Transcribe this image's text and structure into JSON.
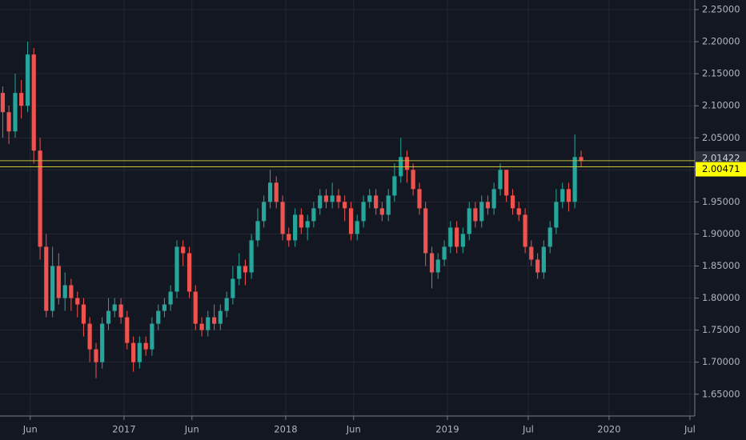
{
  "chart_data": {
    "type": "candlestick",
    "background": "#131722",
    "grid": true,
    "grid_color": "#242733",
    "xlim": [
      2016.233,
      2020.53
    ],
    "ylim": [
      1.616,
      2.265
    ],
    "xticks": [
      {
        "value": 2016.42,
        "label": "Jun"
      },
      {
        "value": 2017,
        "label": "2017"
      },
      {
        "value": 2017.42,
        "label": "Jun"
      },
      {
        "value": 2018,
        "label": "2018"
      },
      {
        "value": 2018.42,
        "label": "Jun"
      },
      {
        "value": 2019,
        "label": "2019"
      },
      {
        "value": 2019.5,
        "label": "Jul"
      },
      {
        "value": 2020,
        "label": "2020"
      },
      {
        "value": 2020.5,
        "label": "Jul"
      }
    ],
    "yticks": [
      {
        "value": 1.65,
        "label": "1.65000"
      },
      {
        "value": 1.7,
        "label": "1.70000"
      },
      {
        "value": 1.75,
        "label": "1.75000"
      },
      {
        "value": 1.8,
        "label": "1.80000"
      },
      {
        "value": 1.85,
        "label": "1.85000"
      },
      {
        "value": 1.9,
        "label": "1.90000"
      },
      {
        "value": 1.95,
        "label": "1.95000"
      },
      {
        "value": 2.0,
        "label": "2.00000"
      },
      {
        "value": 2.05,
        "label": "2.05000"
      },
      {
        "value": 2.1,
        "label": "2.10000"
      },
      {
        "value": 2.15,
        "label": "2.15000"
      },
      {
        "value": 2.2,
        "label": "2.20000"
      },
      {
        "value": 2.25,
        "label": "2.25000"
      }
    ],
    "up_color": "#26a69a",
    "down_color": "#ef5350",
    "x": [
      2016.25,
      2016.288,
      2016.327,
      2016.365,
      2016.404,
      2016.442,
      2016.481,
      2016.519,
      2016.558,
      2016.596,
      2016.635,
      2016.673,
      2016.712,
      2016.75,
      2016.788,
      2016.827,
      2016.865,
      2016.904,
      2016.942,
      2016.981,
      2017.019,
      2017.058,
      2017.096,
      2017.135,
      2017.173,
      2017.212,
      2017.25,
      2017.288,
      2017.327,
      2017.365,
      2017.404,
      2017.442,
      2017.481,
      2017.519,
      2017.558,
      2017.596,
      2017.635,
      2017.673,
      2017.712,
      2017.75,
      2017.788,
      2017.827,
      2017.865,
      2017.904,
      2017.942,
      2017.981,
      2018.019,
      2018.058,
      2018.096,
      2018.135,
      2018.173,
      2018.212,
      2018.25,
      2018.288,
      2018.327,
      2018.365,
      2018.404,
      2018.442,
      2018.481,
      2018.519,
      2018.558,
      2018.596,
      2018.635,
      2018.673,
      2018.712,
      2018.75,
      2018.788,
      2018.827,
      2018.865,
      2018.904,
      2018.942,
      2018.981,
      2019.019,
      2019.058,
      2019.096,
      2019.135,
      2019.173,
      2019.212,
      2019.25,
      2019.288,
      2019.327,
      2019.365,
      2019.404,
      2019.442,
      2019.481,
      2019.519,
      2019.558,
      2019.596,
      2019.635,
      2019.673,
      2019.712,
      2019.75,
      2019.788,
      2019.827
    ],
    "open": [
      2.12,
      2.09,
      2.06,
      2.12,
      2.1,
      2.18,
      2.03,
      1.88,
      1.78,
      1.85,
      1.8,
      1.82,
      1.8,
      1.79,
      1.76,
      1.72,
      1.7,
      1.76,
      1.78,
      1.79,
      1.77,
      1.73,
      1.7,
      1.73,
      1.72,
      1.76,
      1.78,
      1.79,
      1.81,
      1.88,
      1.87,
      1.81,
      1.76,
      1.75,
      1.77,
      1.76,
      1.78,
      1.8,
      1.83,
      1.85,
      1.84,
      1.89,
      1.92,
      1.95,
      1.98,
      1.95,
      1.9,
      1.89,
      1.93,
      1.91,
      1.92,
      1.94,
      1.96,
      1.95,
      1.96,
      1.95,
      1.94,
      1.9,
      1.92,
      1.95,
      1.96,
      1.94,
      1.93,
      1.96,
      1.99,
      2.02,
      2.0,
      1.97,
      1.94,
      1.87,
      1.84,
      1.86,
      1.88,
      1.91,
      1.88,
      1.9,
      1.94,
      1.92,
      1.95,
      1.94,
      1.97,
      2.0,
      1.96,
      1.94,
      1.93,
      1.88,
      1.86,
      1.84,
      1.88,
      1.91,
      1.95,
      1.97,
      1.95,
      2.02
    ],
    "high": [
      2.13,
      2.1,
      2.15,
      2.14,
      2.2,
      2.19,
      2.05,
      1.9,
      1.88,
      1.87,
      1.84,
      1.83,
      1.81,
      1.8,
      1.77,
      1.73,
      1.77,
      1.8,
      1.8,
      1.8,
      1.78,
      1.74,
      1.74,
      1.74,
      1.77,
      1.79,
      1.8,
      1.82,
      1.89,
      1.89,
      1.88,
      1.82,
      1.77,
      1.78,
      1.79,
      1.79,
      1.81,
      1.85,
      1.87,
      1.86,
      1.9,
      1.94,
      1.96,
      2.0,
      1.99,
      1.96,
      1.91,
      1.94,
      1.94,
      1.93,
      1.95,
      1.97,
      1.97,
      1.98,
      1.97,
      1.96,
      1.95,
      1.93,
      1.96,
      1.97,
      1.97,
      1.95,
      1.97,
      2.01,
      2.05,
      2.03,
      2.01,
      1.98,
      1.95,
      1.88,
      1.87,
      1.89,
      1.92,
      1.92,
      1.91,
      1.95,
      1.95,
      1.96,
      1.96,
      1.98,
      2.01,
      2.0,
      1.97,
      1.95,
      1.94,
      1.89,
      1.87,
      1.89,
      1.92,
      1.97,
      1.98,
      1.98,
      2.055,
      2.03
    ],
    "low": [
      2.05,
      2.04,
      2.05,
      2.08,
      2.09,
      2.01,
      1.86,
      1.77,
      1.77,
      1.79,
      1.78,
      1.78,
      1.77,
      1.74,
      1.7,
      1.675,
      1.69,
      1.75,
      1.77,
      1.76,
      1.72,
      1.685,
      1.69,
      1.71,
      1.71,
      1.75,
      1.77,
      1.78,
      1.8,
      1.85,
      1.8,
      1.75,
      1.74,
      1.74,
      1.75,
      1.75,
      1.77,
      1.79,
      1.82,
      1.82,
      1.83,
      1.88,
      1.91,
      1.94,
      1.94,
      1.89,
      1.88,
      1.88,
      1.9,
      1.89,
      1.91,
      1.93,
      1.94,
      1.94,
      1.94,
      1.92,
      1.89,
      1.89,
      1.91,
      1.94,
      1.93,
      1.92,
      1.92,
      1.95,
      1.98,
      1.98,
      1.96,
      1.93,
      1.85,
      1.815,
      1.83,
      1.85,
      1.87,
      1.87,
      1.87,
      1.89,
      1.91,
      1.91,
      1.93,
      1.93,
      1.96,
      1.95,
      1.93,
      1.92,
      1.87,
      1.85,
      1.83,
      1.83,
      1.87,
      1.9,
      1.94,
      1.935,
      1.94,
      2.005
    ],
    "close": [
      2.09,
      2.06,
      2.12,
      2.1,
      2.18,
      2.03,
      1.88,
      1.78,
      1.85,
      1.8,
      1.82,
      1.8,
      1.79,
      1.76,
      1.72,
      1.7,
      1.76,
      1.78,
      1.79,
      1.77,
      1.73,
      1.7,
      1.73,
      1.72,
      1.76,
      1.78,
      1.79,
      1.81,
      1.88,
      1.87,
      1.81,
      1.76,
      1.75,
      1.77,
      1.76,
      1.78,
      1.8,
      1.83,
      1.85,
      1.84,
      1.89,
      1.92,
      1.95,
      1.98,
      1.95,
      1.9,
      1.89,
      1.93,
      1.91,
      1.92,
      1.94,
      1.96,
      1.95,
      1.96,
      1.95,
      1.94,
      1.9,
      1.92,
      1.95,
      1.96,
      1.94,
      1.93,
      1.96,
      1.99,
      2.02,
      2.0,
      1.97,
      1.94,
      1.87,
      1.84,
      1.86,
      1.88,
      1.91,
      1.88,
      1.9,
      1.94,
      1.92,
      1.95,
      1.94,
      1.97,
      2.0,
      1.96,
      1.94,
      1.93,
      1.88,
      1.86,
      1.84,
      1.88,
      1.91,
      1.95,
      1.97,
      1.95,
      2.02,
      2.014
    ],
    "price_lines": [
      {
        "value": 2.01422,
        "color": "#b8b83a",
        "label_color": "#2a2e39",
        "text_color": "#d1d4dc"
      },
      {
        "value": 2.00471,
        "color": "#c9c930",
        "label_color": "#ffff00",
        "text_color": "#000000"
      }
    ]
  }
}
